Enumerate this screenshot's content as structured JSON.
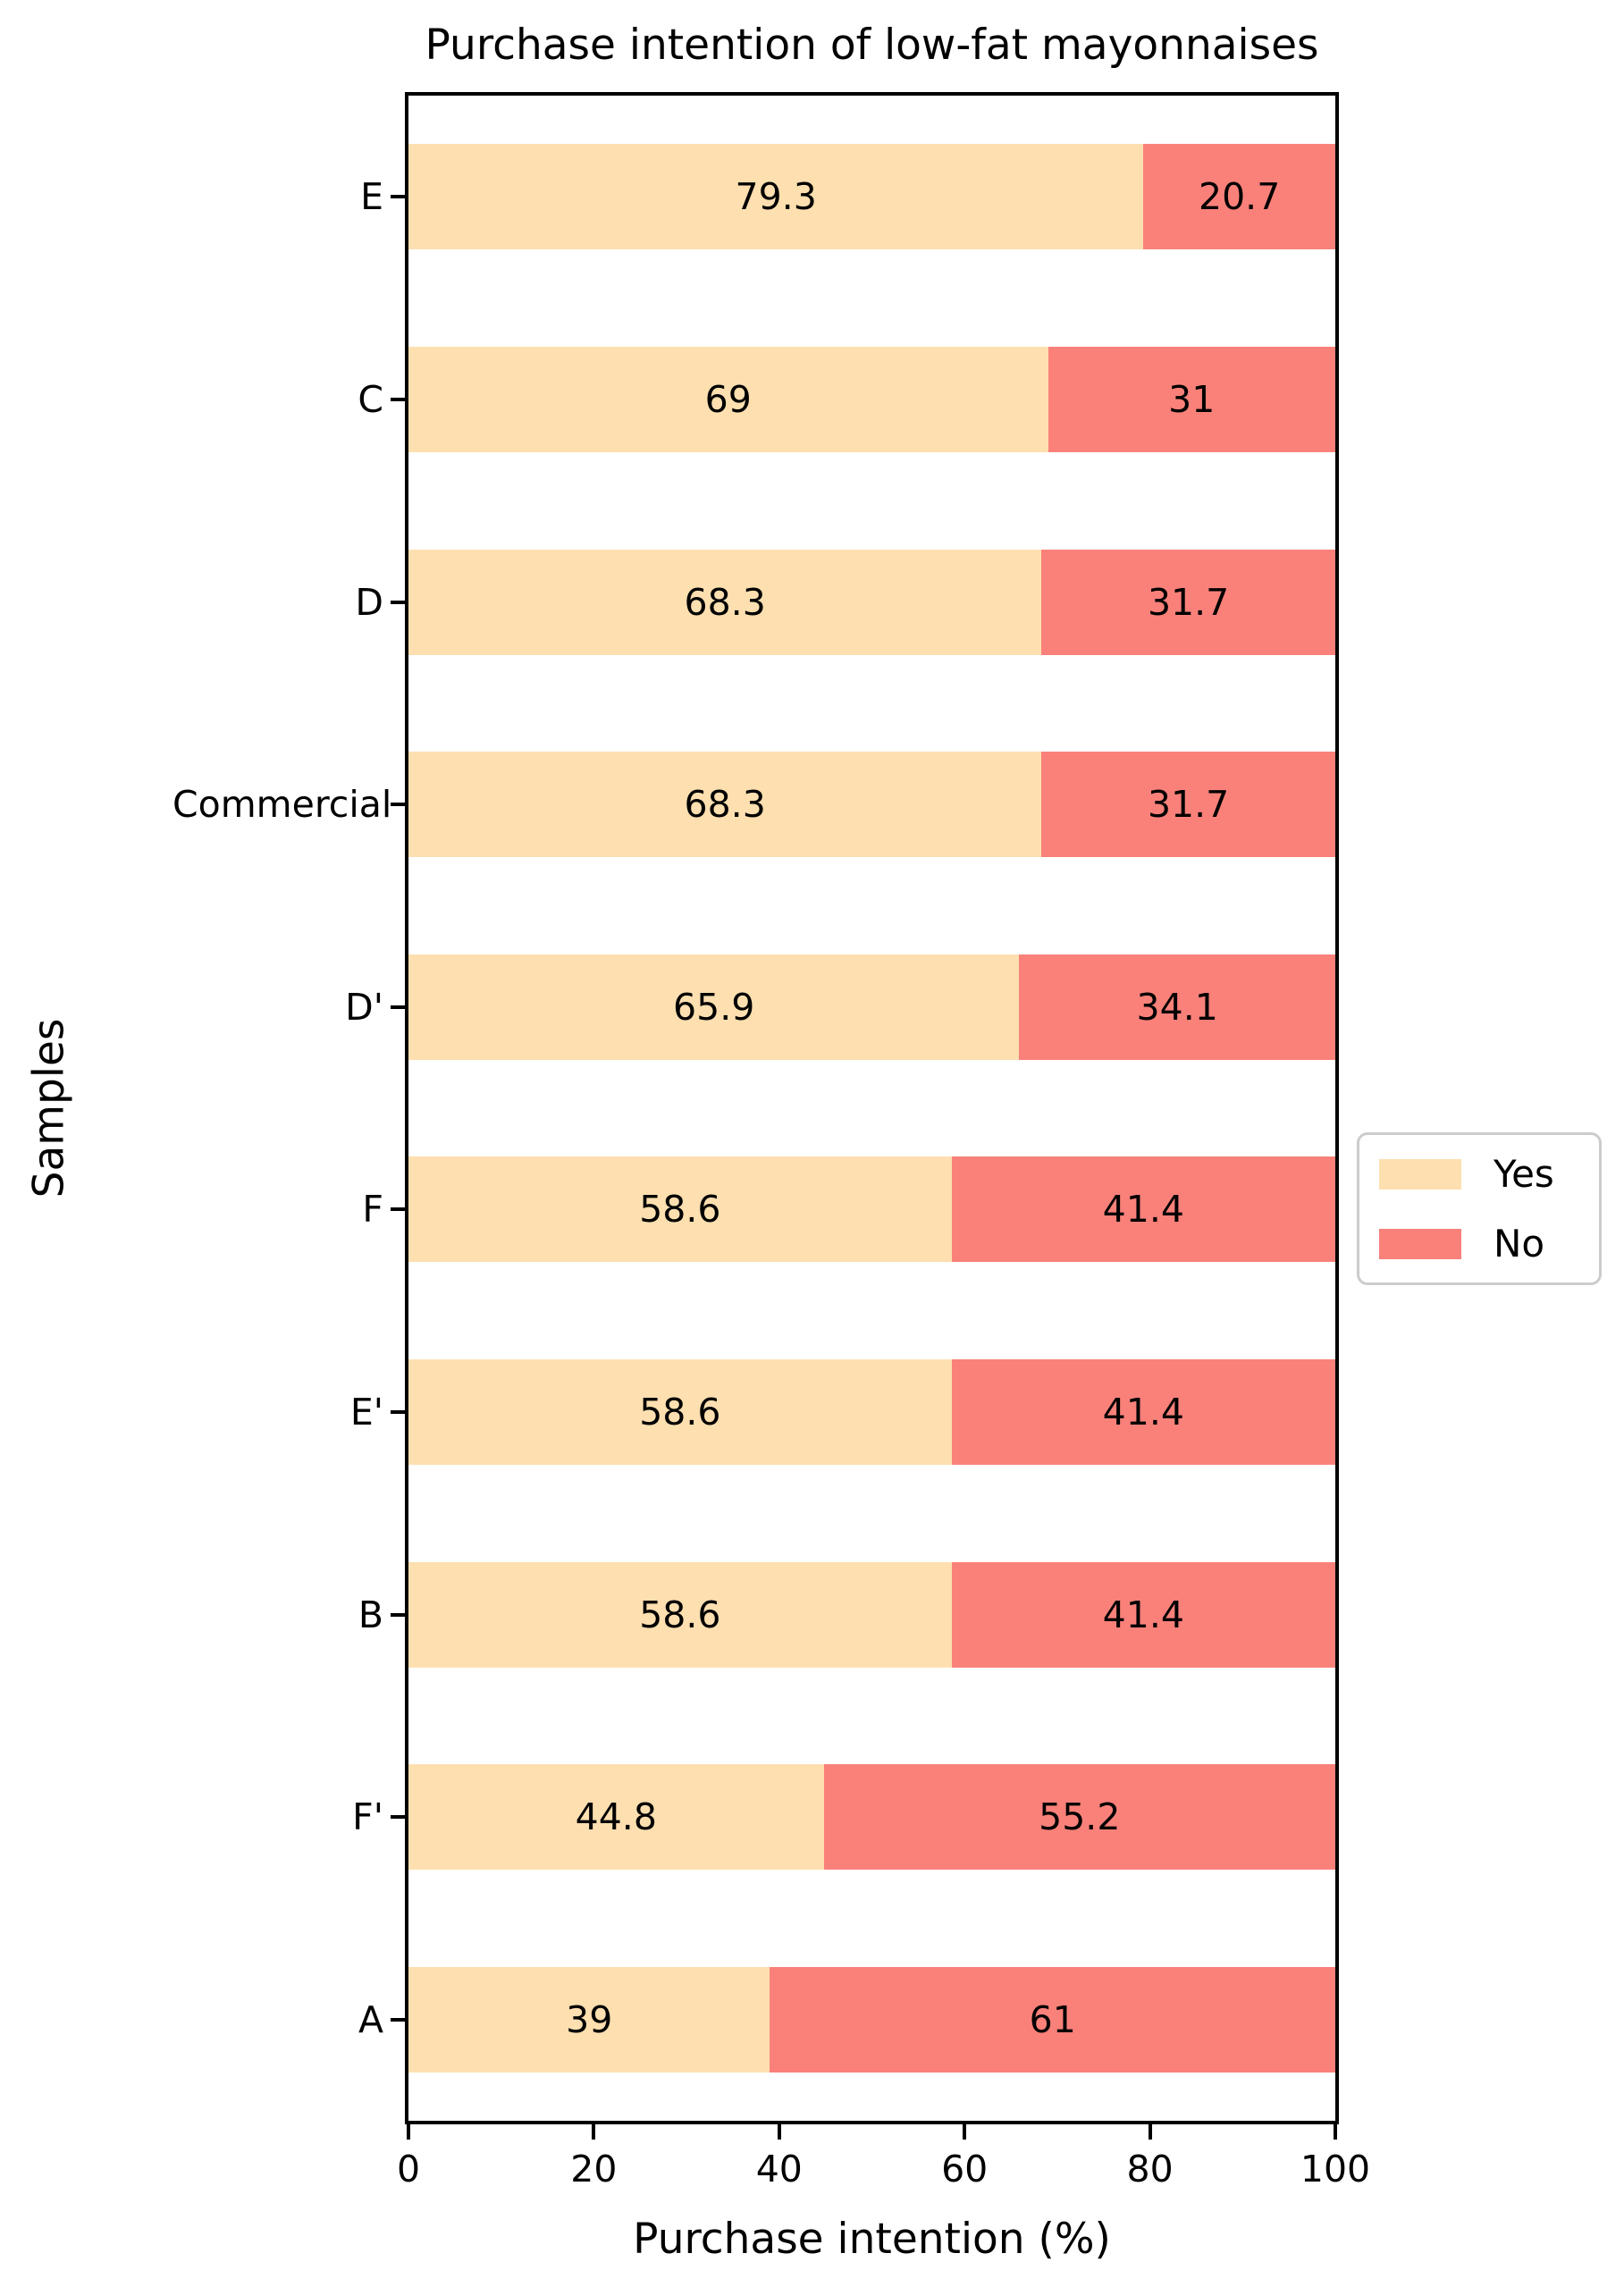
{
  "chart_data": {
    "type": "bar",
    "orientation": "horizontal",
    "stacked": true,
    "title": "Purchase intention of low-fat mayonnaises",
    "xlabel": "Purchase intention (%)",
    "ylabel": "Samples",
    "xlim": [
      0,
      100
    ],
    "xticks": [
      "0",
      "20",
      "40",
      "60",
      "80",
      "100"
    ],
    "grid": false,
    "legend_position": "right-outside",
    "categories": [
      "E",
      "C",
      "D",
      "Commercial",
      "D'",
      "F",
      "E'",
      "B",
      "F'",
      "A"
    ],
    "series": [
      {
        "name": "Yes",
        "color": "#FDDFB0",
        "values": [
          79.3,
          69,
          68.3,
          68.3,
          65.9,
          58.6,
          58.6,
          58.6,
          44.8,
          39
        ],
        "labels": [
          "79.3",
          "69",
          "68.3",
          "68.3",
          "65.9",
          "58.6",
          "58.6",
          "58.6",
          "44.8",
          "39"
        ]
      },
      {
        "name": "No",
        "color": "#F9817A",
        "values": [
          20.7,
          31,
          31.7,
          31.7,
          34.1,
          41.4,
          41.4,
          41.4,
          55.2,
          61
        ],
        "labels": [
          "20.7",
          "31",
          "31.7",
          "31.7",
          "34.1",
          "41.4",
          "41.4",
          "41.4",
          "55.2",
          "61"
        ]
      }
    ],
    "legend": {
      "items": [
        {
          "label": "Yes",
          "color": "#FDDFB0"
        },
        {
          "label": "No",
          "color": "#F9817A"
        }
      ]
    },
    "colors": {
      "axis": "#000000",
      "text": "#000000",
      "legend_border": "#cccccc",
      "background": "#ffffff"
    }
  }
}
